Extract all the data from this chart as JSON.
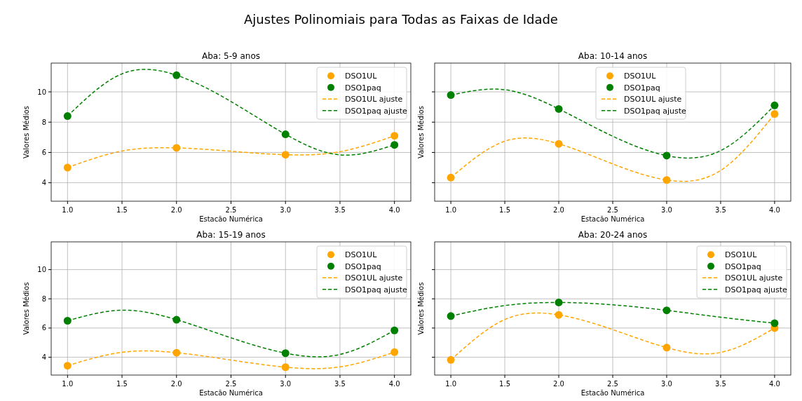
{
  "chart_data": [
    {
      "type": "scatter",
      "title": "Aba: 5-9 anos",
      "xlabel": "Estacão Numérica",
      "ylabel": "Valores Médios",
      "annotations": [
        "Ajustes Polinomiais para Todas as Faixas de Idade"
      ],
      "xlim": [
        0.85,
        4.15
      ],
      "ylim": [
        2.78,
        11.9
      ],
      "xticks": [
        {
          "value": 1,
          "label": "1.0"
        },
        1.5,
        {
          "value": 2,
          "label": "2.0"
        },
        2.5,
        {
          "value": 3,
          "label": "3.0"
        },
        3.5,
        {
          "value": 4,
          "label": "4.0"
        }
      ],
      "yticks": [
        4,
        6,
        8,
        10
      ],
      "grid": true,
      "legend": "top right",
      "series": [
        {
          "name": "DSO1UL",
          "color": "#ffa500",
          "marker": "circle",
          "x": [
            1,
            2,
            3,
            4
          ],
          "values": [
            5.0,
            6.3,
            5.85,
            7.1
          ]
        },
        {
          "name": "DSO1paq",
          "color": "#008000",
          "marker": "circle",
          "x": [
            1,
            2,
            3,
            4
          ],
          "values": [
            8.4,
            11.1,
            7.2,
            6.5
          ]
        },
        {
          "name": "DSO1UL ajuste",
          "type": "line",
          "line_style": "dashed",
          "color": "#ffa500",
          "x": [
            1,
            1.5,
            2,
            2.5,
            3,
            3.5,
            4
          ],
          "values": [
            5.0,
            6.09,
            6.3,
            6.08,
            5.85,
            6.05,
            7.1
          ]
        },
        {
          "name": "DSO1paq ajuste",
          "type": "line",
          "line_style": "dashed",
          "color": "#008000",
          "x": [
            1,
            1.5,
            2,
            2.5,
            3,
            3.5,
            4
          ],
          "values": [
            8.4,
            11.19,
            11.1,
            9.36,
            7.2,
            5.84,
            6.5
          ]
        }
      ]
    },
    {
      "type": "scatter",
      "title": "Aba: 10-14 anos",
      "xlabel": "Estacão Numérica",
      "ylabel": "Valores Médios",
      "xlim": [
        0.85,
        4.15
      ],
      "ylim": [
        2.78,
        11.9
      ],
      "xticks": [
        {
          "value": 1,
          "label": "1.0"
        },
        1.5,
        {
          "value": 2,
          "label": "2.0"
        },
        2.5,
        {
          "value": 3,
          "label": "3.0"
        },
        3.5,
        {
          "value": 4,
          "label": "4.0"
        }
      ],
      "yticks": [
        4,
        6,
        8,
        10
      ],
      "tick_labels": "x",
      "grid": true,
      "legend": "top",
      "series": [
        {
          "name": "DSO1UL",
          "color": "#ffa500",
          "marker": "circle",
          "x": [
            1,
            2,
            3,
            4
          ],
          "values": [
            4.34,
            6.57,
            4.18,
            8.54
          ]
        },
        {
          "name": "DSO1paq",
          "color": "#008000",
          "marker": "circle",
          "x": [
            1,
            2,
            3,
            4
          ],
          "values": [
            9.79,
            8.87,
            5.79,
            9.11
          ]
        },
        {
          "name": "DSO1UL ajuste",
          "type": "line",
          "line_style": "dashed",
          "color": "#ffa500",
          "x": [
            1,
            1.5,
            2,
            2.5,
            3,
            3.5,
            4
          ],
          "values": [
            4.34,
            6.74,
            6.57,
            5.24,
            4.18,
            4.81,
            8.54
          ]
        },
        {
          "name": "DSO1paq ajuste",
          "type": "line",
          "line_style": "dashed",
          "color": "#008000",
          "x": [
            1,
            1.5,
            2,
            2.5,
            3,
            3.5,
            4
          ],
          "values": [
            9.79,
            10.14,
            8.87,
            7.07,
            5.79,
            6.12,
            9.11
          ]
        }
      ]
    },
    {
      "type": "scatter",
      "title": "Aba: 15-19 anos",
      "xlabel": "Estacão Numérica",
      "ylabel": "Valores Médios",
      "xlim": [
        0.85,
        4.15
      ],
      "ylim": [
        2.78,
        11.9
      ],
      "xticks": [
        {
          "value": 1,
          "label": "1.0"
        },
        1.5,
        {
          "value": 2,
          "label": "2.0"
        },
        2.5,
        {
          "value": 3,
          "label": "3.0"
        },
        3.5,
        {
          "value": 4,
          "label": "4.0"
        }
      ],
      "yticks": [
        4,
        6,
        8,
        10
      ],
      "grid": true,
      "legend": "top right",
      "series": [
        {
          "name": "DSO1UL",
          "color": "#ffa500",
          "marker": "circle",
          "x": [
            1,
            2,
            3,
            4
          ],
          "values": [
            3.42,
            4.31,
            3.32,
            4.35
          ]
        },
        {
          "name": "DSO1paq",
          "color": "#008000",
          "marker": "circle",
          "x": [
            1,
            2,
            3,
            4
          ],
          "values": [
            6.5,
            6.57,
            4.28,
            5.84
          ]
        },
        {
          "name": "DSO1UL ajuste",
          "type": "line",
          "line_style": "dashed",
          "color": "#ffa500",
          "x": [
            1,
            1.5,
            2,
            2.5,
            3,
            3.5,
            4
          ],
          "values": [
            3.42,
            4.34,
            4.31,
            3.81,
            3.32,
            3.34,
            4.35
          ]
        },
        {
          "name": "DSO1paq ajuste",
          "type": "line",
          "line_style": "dashed",
          "color": "#008000",
          "x": [
            1,
            1.5,
            2,
            2.5,
            3,
            3.5,
            4
          ],
          "values": [
            6.5,
            7.22,
            6.57,
            5.33,
            4.28,
            4.19,
            5.84
          ]
        }
      ]
    },
    {
      "type": "scatter",
      "title": "Aba: 20-24 anos",
      "xlabel": "Estacão Numérica",
      "ylabel": "Valores Médios",
      "xlim": [
        0.85,
        4.15
      ],
      "ylim": [
        2.78,
        11.9
      ],
      "xticks": [
        {
          "value": 1,
          "label": "1.0"
        },
        1.5,
        {
          "value": 2,
          "label": "2.0"
        },
        2.5,
        {
          "value": 3,
          "label": "3.0"
        },
        3.5,
        {
          "value": 4,
          "label": "4.0"
        }
      ],
      "yticks": [
        4,
        6,
        8,
        10
      ],
      "tick_labels": "x",
      "grid": true,
      "legend": "top right",
      "series": [
        {
          "name": "DSO1UL",
          "color": "#ffa500",
          "marker": "circle",
          "x": [
            1,
            2,
            3,
            4
          ],
          "values": [
            3.82,
            6.9,
            4.66,
            6.0
          ]
        },
        {
          "name": "DSO1paq",
          "color": "#008000",
          "marker": "circle",
          "x": [
            1,
            2,
            3,
            4
          ],
          "values": [
            6.82,
            7.75,
            7.21,
            6.33
          ]
        },
        {
          "name": "DSO1UL ajuste",
          "type": "line",
          "line_style": "dashed",
          "color": "#ffa500",
          "x": [
            1,
            1.5,
            2,
            2.5,
            3,
            3.5,
            4
          ],
          "values": [
            3.82,
            6.58,
            6.9,
            5.89,
            4.66,
            4.33,
            6.0
          ]
        },
        {
          "name": "DSO1paq ajuste",
          "type": "line",
          "line_style": "dashed",
          "color": "#008000",
          "x": [
            1,
            1.5,
            2,
            2.5,
            3,
            3.5,
            4
          ],
          "values": [
            6.82,
            7.54,
            7.75,
            7.59,
            7.21,
            6.74,
            6.33
          ]
        }
      ]
    }
  ]
}
